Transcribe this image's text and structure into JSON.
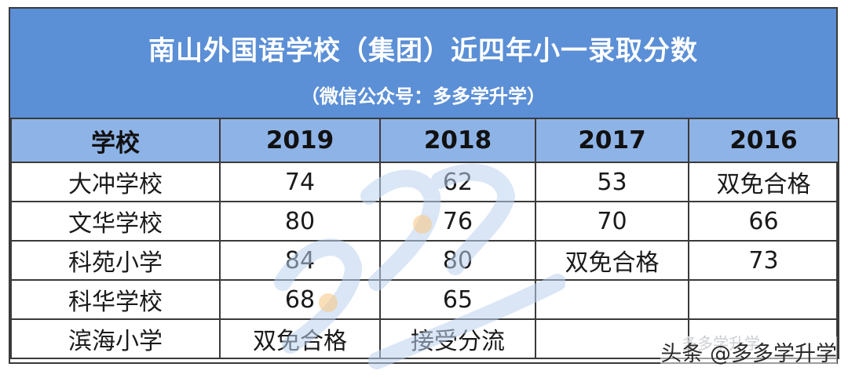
{
  "title": "南山外国语学校（集团）近四年小一录取分数",
  "subtitle": "（微信公众号：多多学升学）",
  "columns": [
    "学校",
    "2019",
    "2018",
    "2017",
    "2016"
  ],
  "rows": [
    [
      "大冲学校",
      "74",
      "62",
      "53",
      "双免合格"
    ],
    [
      "文华学校",
      "80",
      "76",
      "70",
      "66"
    ],
    [
      "科苑小学",
      "84",
      "80",
      "双免合格",
      "73"
    ],
    [
      "科华学校",
      "68",
      "65",
      "",
      ""
    ],
    [
      "滨海小学",
      "双免合格",
      "接受分流",
      "",
      ""
    ]
  ],
  "watermark": {
    "faded_label": "多多学升学",
    "credit": "头条 @多多学升学"
  },
  "colors": {
    "title_bg": "#5b8fd6",
    "header_bg": "#8eb3e6",
    "border": "#3a3a3a",
    "watermark_blue": "#bcd3f0",
    "watermark_orange": "#f6c98a"
  }
}
